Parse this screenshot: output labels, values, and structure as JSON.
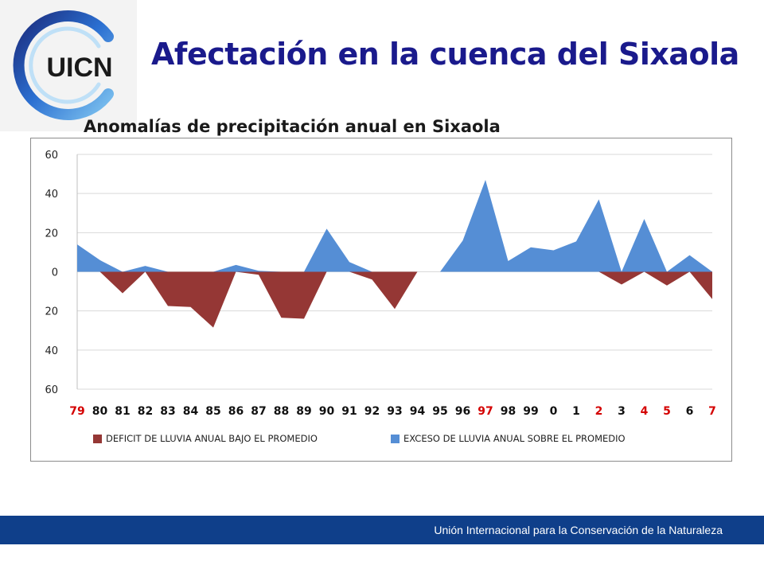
{
  "header": {
    "title": "Afectación en la cuenca del Sixaola",
    "logo_text": "UICN"
  },
  "footer": {
    "text": "Unión Internacional para la Conservación de la Naturaleza"
  },
  "colors": {
    "deficit": "#953735",
    "excess": "#558ED5",
    "title": "#1A1A8C",
    "footer": "#0F3F8A"
  },
  "chart_data": {
    "type": "area",
    "title": "Anomalías de precipitación anual en Sixaola",
    "categories": [
      "79",
      "80",
      "81",
      "82",
      "83",
      "84",
      "85",
      "86",
      "87",
      "88",
      "89",
      "90",
      "91",
      "92",
      "93",
      "94",
      "95",
      "96",
      "97",
      "98",
      "99",
      "0",
      "1",
      "2",
      "3",
      "4",
      "5",
      "6",
      "7"
    ],
    "category_colors": [
      "red",
      "black",
      "black",
      "black",
      "black",
      "black",
      "black",
      "black",
      "black",
      "black",
      "black",
      "black",
      "black",
      "black",
      "black",
      "black",
      "black",
      "black",
      "red",
      "black",
      "black",
      "black",
      "black",
      "red",
      "black",
      "red",
      "red",
      "black",
      "red"
    ],
    "series": [
      {
        "name": "DEFICIT DE LLUVIA ANUAL BAJO EL PROMEDIO",
        "color": "#953735",
        "values": [
          0,
          0,
          -11,
          0,
          -17.5,
          -18,
          -28.5,
          0,
          -1.5,
          -23.5,
          -24,
          0,
          0,
          -4,
          -19,
          0,
          0,
          0,
          0,
          0,
          0,
          0,
          0,
          0,
          -6.5,
          0,
          -7,
          0,
          -14
        ]
      },
      {
        "name": "EXCESO DE LLUVIA ANUAL SOBRE EL PROMEDIO",
        "color": "#558ED5",
        "values": [
          14,
          6,
          0,
          3,
          0,
          0,
          0,
          3.5,
          0.5,
          0,
          0,
          22,
          5,
          0,
          0,
          null,
          0,
          16,
          47,
          5.5,
          12.5,
          11,
          15.5,
          37,
          0,
          27,
          0,
          8.5,
          0
        ]
      }
    ],
    "ylim": [
      -60,
      60
    ],
    "yticks": [
      60,
      40,
      20,
      0,
      -20,
      -40,
      -60
    ],
    "ytick_labels": [
      "60",
      "40",
      "20",
      "0",
      "20",
      "40",
      "60"
    ],
    "xlabel": "",
    "ylabel": "",
    "grid": true,
    "legend": "bottom"
  }
}
